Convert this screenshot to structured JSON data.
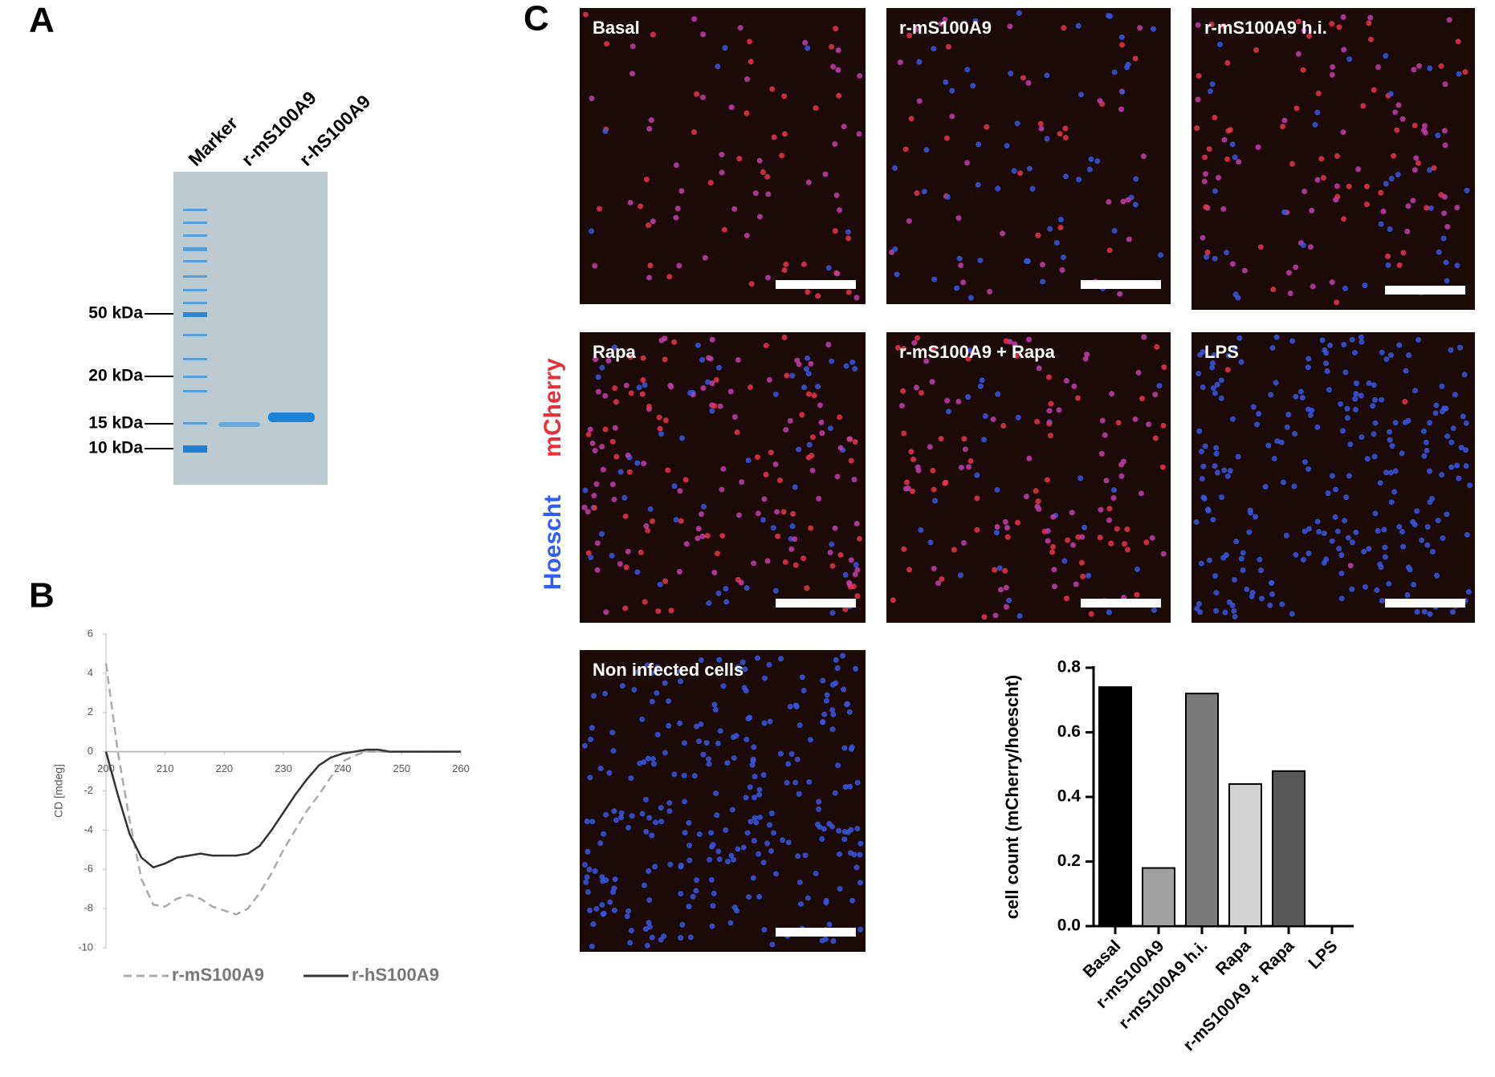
{
  "panel_labels": [
    "A",
    "B",
    "C"
  ],
  "gel": {
    "lanes": [
      "Marker",
      "r-mS100A9",
      "r-hS100A9"
    ],
    "markers": [
      "50 kDa",
      "20 kDa",
      "15 kDa",
      "10 kDa"
    ]
  },
  "micrographs": {
    "channel_labels": [
      "Hoescht",
      "mCherry"
    ],
    "panels": [
      "Basal",
      "r-mS100A9",
      "r-mS100A9 h.i.",
      "Rapa",
      "r-mS100A9 + Rapa",
      "LPS",
      "Non infected cells"
    ]
  },
  "chart_data": [
    {
      "type": "line",
      "ylabel": "CD [mdeg]",
      "x": [
        200,
        202,
        204,
        206,
        208,
        210,
        212,
        214,
        216,
        218,
        220,
        222,
        224,
        226,
        228,
        230,
        232,
        234,
        236,
        238,
        240,
        242,
        244,
        246,
        248,
        250,
        252,
        254,
        256,
        258,
        260
      ],
      "series": [
        {
          "name": "r-mS100A9",
          "color": "#aaaaaa",
          "dashed": true,
          "values": [
            4.5,
            0,
            -3.5,
            -6.5,
            -7.8,
            -7.9,
            -7.5,
            -7.3,
            -7.5,
            -7.9,
            -8.1,
            -8.3,
            -8.0,
            -7.2,
            -6.2,
            -5.0,
            -4.0,
            -3.0,
            -2.2,
            -1.3,
            -0.5,
            -0.2,
            0,
            0,
            0,
            0,
            0,
            0,
            0,
            0,
            0
          ]
        },
        {
          "name": "r-hS100A9",
          "color": "#333333",
          "dashed": false,
          "values": [
            0,
            -2.2,
            -4.2,
            -5.4,
            -5.9,
            -5.7,
            -5.4,
            -5.3,
            -5.2,
            -5.3,
            -5.3,
            -5.3,
            -5.2,
            -4.8,
            -4.0,
            -3.1,
            -2.2,
            -1.4,
            -0.7,
            -0.3,
            -0.1,
            0,
            0.1,
            0.1,
            0,
            0,
            0,
            0,
            0,
            0,
            0
          ]
        }
      ],
      "xlim": [
        200,
        260
      ],
      "xticks": [
        200,
        210,
        220,
        230,
        240,
        250,
        260
      ],
      "ylim": [
        -10,
        6
      ],
      "yticks": [
        -10,
        -8,
        -6,
        -4,
        -2,
        0,
        2,
        4,
        6
      ]
    },
    {
      "type": "bar",
      "ylabel": "cell count (mCherry/hoescht)",
      "categories": [
        "Basal",
        "r-mS100A9",
        "r-mS100A9 h.i.",
        "Rapa",
        "r-mS100A9 + Rapa",
        "LPS"
      ],
      "values": [
        0.74,
        0.18,
        0.72,
        0.44,
        0.48,
        0
      ],
      "colors": [
        "#000000",
        "#a0a0a0",
        "#7a7a7a",
        "#d2d2d2",
        "#575757",
        "#ffffff"
      ],
      "ylim": [
        0,
        0.8
      ],
      "yticks": [
        {
          "value": 0,
          "label": "0.0"
        },
        0.2,
        0.4,
        0.6,
        0.8
      ]
    }
  ]
}
